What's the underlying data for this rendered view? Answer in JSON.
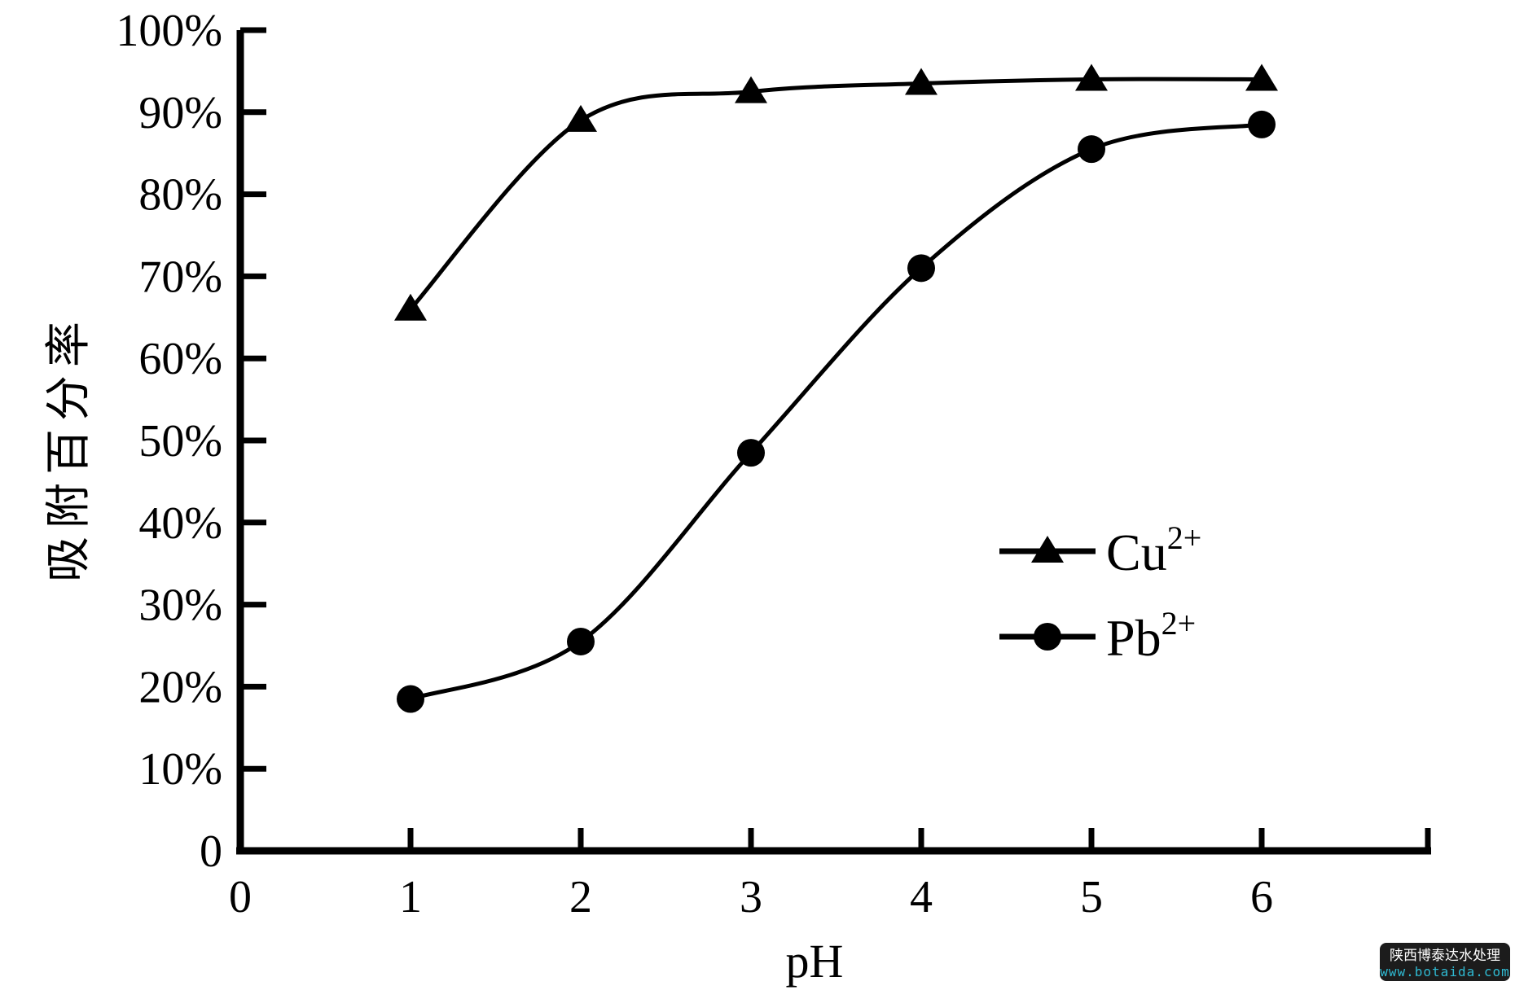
{
  "colors": {
    "ink": "#000000",
    "background": "#ffffff"
  },
  "watermark": {
    "line1": "陕西博泰达水处理",
    "line2": "www.botaida.com",
    "bg": "#1c1c1c",
    "line1_color": "#ffffff",
    "line2_color": "#2fb9d1"
  },
  "chart_data": {
    "type": "line",
    "title": "",
    "xlabel": "pH",
    "ylabel": "吸附百分率",
    "x": [
      1,
      2,
      3,
      4,
      5,
      6
    ],
    "xlim": [
      0,
      7
    ],
    "ylim": [
      0,
      100
    ],
    "x_ticks": [
      0,
      1,
      2,
      3,
      4,
      5,
      6
    ],
    "y_ticks": [
      0,
      10,
      20,
      30,
      40,
      50,
      60,
      70,
      80,
      90,
      100
    ],
    "y_tick_labels": [
      "0",
      "10%",
      "20%",
      "30%",
      "40%",
      "50%",
      "60%",
      "70%",
      "80%",
      "90%",
      "100%"
    ],
    "grid": false,
    "legend_position": "center-right",
    "series": [
      {
        "name": "Cu2+",
        "label_base": "Cu",
        "label_sup": "2+",
        "marker": "triangle",
        "values": [
          66,
          89,
          92.5,
          93.5,
          94,
          94
        ]
      },
      {
        "name": "Pb2+",
        "label_base": "Pb",
        "label_sup": "2+",
        "marker": "circle",
        "values": [
          18.5,
          25.5,
          48.5,
          71,
          85.5,
          88.5
        ]
      }
    ]
  }
}
